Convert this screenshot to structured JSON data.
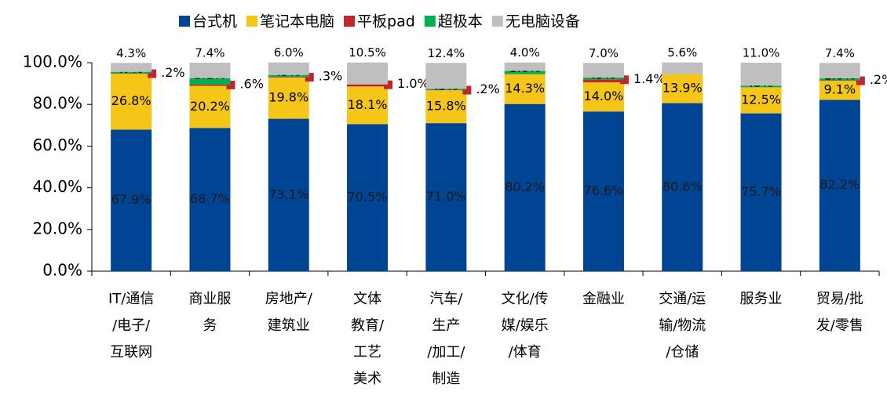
{
  "chart_data": {
    "type": "stacked_bar",
    "categories": [
      "IT/通信\n/电子/\n互联网",
      "商业服\n务",
      "房地产/\n建筑业",
      "文体\n教育/\n工艺\n美术",
      "汽车/\n生产\n/加工/\n制造",
      "文化/传\n媒/娱乐\n/体育",
      "金融业",
      "交通/运\n输/物流\n/仓储",
      "服务业",
      "贸易/批\n发/零售"
    ],
    "series": [
      {
        "name": "台式机",
        "color": "#004494",
        "values": [
          67.9,
          68.7,
          73.1,
          70.5,
          71.0,
          80.2,
          76.6,
          80.6,
          75.7,
          82.2
        ],
        "value_labels": [
          "67.9%",
          "68.7%",
          "73.1%",
          "70.5%",
          "71.0%",
          "80.2%",
          "76.6%",
          "80.6%",
          "75.7%",
          "82.2%"
        ]
      },
      {
        "name": "笔记本电脑",
        "color": "#f5c518",
        "values": [
          26.8,
          20.2,
          19.8,
          18.1,
          15.8,
          14.3,
          14.0,
          13.9,
          12.5,
          9.1
        ],
        "value_labels": [
          "26.8%",
          "20.2%",
          "19.8%",
          "18.1%",
          "15.8%",
          "14.3%",
          "14.0%",
          "13.9%",
          "12.5%",
          "9.1%"
        ]
      },
      {
        "name": "平板pad",
        "color": "#c0272d",
        "values": [
          0.2,
          0.6,
          0.3,
          1.0,
          0.2,
          null,
          1.4,
          null,
          null,
          0.2
        ],
        "value_labels": [
          ".2%",
          ".6%",
          ".3%",
          "1.0%",
          ".2%",
          null,
          "1.4%",
          null,
          null,
          ".2%"
        ]
      },
      {
        "name": "超极本",
        "color": "#00b050",
        "values": [
          0.7,
          3.1,
          0.9,
          null,
          0.5,
          1.6,
          0.9,
          null,
          0.8,
          1.0
        ],
        "value_labels": [
          ".7%",
          "3.1%",
          ".9%",
          null,
          ".5%",
          "1.6%",
          ".9%",
          null,
          ".8%",
          "1.0%"
        ]
      },
      {
        "name": "无电脑设备",
        "color": "#bfbfbf",
        "values": [
          4.3,
          7.4,
          6.0,
          10.5,
          12.4,
          4.0,
          7.0,
          5.6,
          11.0,
          7.4
        ],
        "value_labels": [
          "4.3%",
          "7.4%",
          "6.0%",
          "10.5%",
          "12.4%",
          "4.0%",
          "7.0%",
          "5.6%",
          "11.0%",
          "7.4%"
        ]
      }
    ],
    "ylim": [
      0,
      100
    ],
    "yticks": [
      {
        "value": 0,
        "label": "0.0%"
      },
      {
        "value": 20,
        "label": "20.0%"
      },
      {
        "value": 40,
        "label": "40.0%"
      },
      {
        "value": 60,
        "label": "60.0%"
      },
      {
        "value": 80,
        "label": "80.0%"
      },
      {
        "value": 100,
        "label": "100.0%"
      }
    ],
    "legend": "top"
  }
}
